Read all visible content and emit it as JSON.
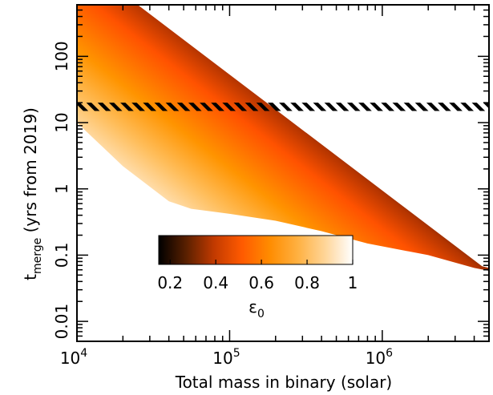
{
  "chart_data": {
    "type": "area",
    "xlabel": "Total mass in binary (solar)",
    "ylabel_main": "t",
    "ylabel_sub": "merge",
    "ylabel_rest": " (yrs from 2019)",
    "xscale": "log",
    "yscale": "log",
    "xlim": [
      10000,
      5000000
    ],
    "ylim": [
      0.005,
      600
    ],
    "xticks": [
      {
        "value": 10000,
        "base": "10",
        "exp": "4"
      },
      {
        "value": 100000,
        "base": "10",
        "exp": "5"
      },
      {
        "value": 1000000,
        "base": "10",
        "exp": "6"
      }
    ],
    "yticks": [
      {
        "value": 0.01,
        "label": "0.01"
      },
      {
        "value": 0.1,
        "label": "0.1"
      },
      {
        "value": 1,
        "label": "1"
      },
      {
        "value": 10,
        "label": "10"
      },
      {
        "value": 100,
        "label": "100"
      }
    ],
    "region_upper_boundary": [
      [
        25000,
        600
      ],
      [
        4500000,
        0.068
      ],
      [
        5000000,
        0.064
      ]
    ],
    "region_lower_boundary": [
      [
        10000,
        10
      ],
      [
        20000,
        2.2
      ],
      [
        40000,
        0.65
      ],
      [
        56000,
        0.5
      ],
      [
        100000,
        0.42
      ],
      [
        200000,
        0.33
      ],
      [
        400000,
        0.23
      ],
      [
        800000,
        0.15
      ],
      [
        2000000,
        0.1
      ],
      [
        4000000,
        0.064
      ],
      [
        5000000,
        0.058
      ]
    ],
    "hatched_band": {
      "y_low": 15,
      "y_high": 20
    },
    "colorbar": {
      "label": "ε",
      "label_sub": "0",
      "range": [
        0.15,
        1.0
      ],
      "ticks": [
        {
          "value": 0.2,
          "label": "0.2"
        },
        {
          "value": 0.4,
          "label": "0.4"
        },
        {
          "value": 0.6,
          "label": "0.6"
        },
        {
          "value": 0.8,
          "label": "0.8"
        },
        {
          "value": 1.0,
          "label": "1"
        }
      ],
      "colors": [
        "#000000",
        "#5a2000",
        "#c23a00",
        "#ff5a00",
        "#ff8c00",
        "#ffb040",
        "#ffd598",
        "#ffffff"
      ]
    }
  }
}
